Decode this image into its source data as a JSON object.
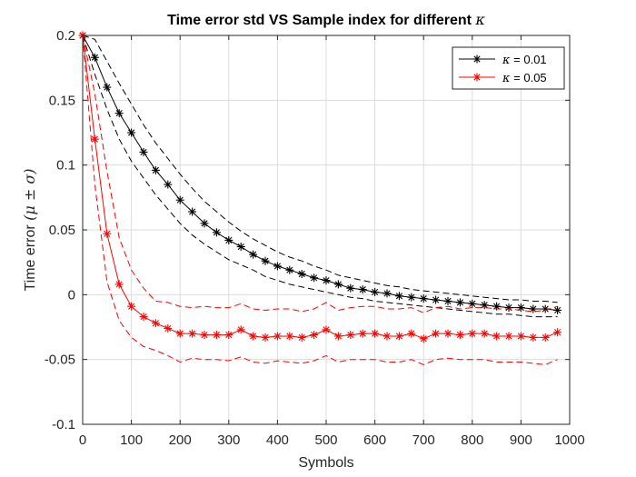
{
  "chart_data": {
    "type": "line",
    "title": "Time error std VS Sample index for different κ",
    "xlabel": "Symbols",
    "ylabel": "Time error (μ ± σ)",
    "xlim": [
      0,
      1000
    ],
    "ylim": [
      -0.1,
      0.2
    ],
    "x_ticks": [
      0,
      100,
      200,
      300,
      400,
      500,
      600,
      700,
      800,
      900,
      1000
    ],
    "y_ticks": [
      -0.1,
      -0.05,
      0,
      0.05,
      0.1,
      0.15,
      0.2
    ],
    "x_tick_labels": [
      "0",
      "100",
      "200",
      "300",
      "400",
      "500",
      "600",
      "700",
      "800",
      "900",
      "1000"
    ],
    "y_tick_labels": [
      "-0.1",
      "-0.05",
      "0",
      "0.05",
      "0.1",
      "0.15",
      "0.2"
    ],
    "grid": true,
    "legend_position": "top-right",
    "x": [
      0,
      25,
      50,
      75,
      100,
      125,
      150,
      175,
      200,
      225,
      250,
      275,
      300,
      325,
      350,
      375,
      400,
      425,
      450,
      475,
      500,
      525,
      550,
      575,
      600,
      625,
      650,
      675,
      700,
      725,
      750,
      775,
      800,
      825,
      850,
      875,
      900,
      925,
      950,
      975
    ],
    "series": [
      {
        "name": "κ = 0.01",
        "color": "#000000",
        "mean": [
          0.2,
          0.183,
          0.16,
          0.14,
          0.125,
          0.11,
          0.096,
          0.085,
          0.073,
          0.064,
          0.055,
          0.048,
          0.042,
          0.037,
          0.031,
          0.026,
          0.022,
          0.019,
          0.016,
          0.013,
          0.011,
          0.008,
          0.005,
          0.004,
          0.002,
          0.001,
          -0.001,
          -0.002,
          -0.003,
          -0.004,
          -0.005,
          -0.006,
          -0.007,
          -0.008,
          -0.009,
          -0.01,
          -0.01,
          -0.011,
          -0.011,
          -0.012
        ],
        "upper": [
          0.2,
          0.197,
          0.18,
          0.163,
          0.147,
          0.131,
          0.117,
          0.105,
          0.093,
          0.082,
          0.072,
          0.064,
          0.056,
          0.049,
          0.043,
          0.038,
          0.033,
          0.029,
          0.026,
          0.022,
          0.019,
          0.015,
          0.013,
          0.011,
          0.009,
          0.007,
          0.006,
          0.004,
          0.003,
          0.002,
          0.001,
          0.0,
          -0.001,
          -0.002,
          -0.003,
          -0.004,
          -0.004,
          -0.005,
          -0.005,
          -0.006
        ],
        "lower": [
          0.2,
          0.17,
          0.143,
          0.12,
          0.103,
          0.09,
          0.077,
          0.066,
          0.055,
          0.046,
          0.039,
          0.033,
          0.027,
          0.023,
          0.019,
          0.014,
          0.011,
          0.008,
          0.006,
          0.004,
          0.002,
          0.0,
          -0.002,
          -0.003,
          -0.005,
          -0.006,
          -0.007,
          -0.008,
          -0.009,
          -0.01,
          -0.011,
          -0.012,
          -0.013,
          -0.014,
          -0.015,
          -0.015,
          -0.016,
          -0.017,
          -0.017,
          -0.017
        ]
      },
      {
        "name": "κ = 0.05",
        "color": "#ff0000",
        "mean": [
          0.2,
          0.12,
          0.047,
          0.008,
          -0.009,
          -0.017,
          -0.022,
          -0.026,
          -0.03,
          -0.03,
          -0.031,
          -0.031,
          -0.031,
          -0.027,
          -0.032,
          -0.033,
          -0.032,
          -0.032,
          -0.033,
          -0.031,
          -0.027,
          -0.032,
          -0.031,
          -0.03,
          -0.03,
          -0.032,
          -0.032,
          -0.03,
          -0.034,
          -0.03,
          -0.03,
          -0.031,
          -0.03,
          -0.03,
          -0.032,
          -0.032,
          -0.032,
          -0.033,
          -0.033,
          -0.029
        ],
        "upper": [
          0.2,
          0.155,
          0.095,
          0.044,
          0.019,
          0.005,
          -0.005,
          -0.006,
          -0.009,
          -0.01,
          -0.009,
          -0.01,
          -0.01,
          -0.007,
          -0.011,
          -0.012,
          -0.011,
          -0.011,
          -0.013,
          -0.011,
          -0.006,
          -0.012,
          -0.01,
          -0.009,
          -0.009,
          -0.011,
          -0.011,
          -0.01,
          -0.014,
          -0.01,
          -0.009,
          -0.011,
          -0.01,
          -0.01,
          -0.011,
          -0.011,
          -0.012,
          -0.013,
          -0.012,
          -0.009
        ],
        "lower": [
          0.2,
          0.085,
          0.01,
          -0.02,
          -0.033,
          -0.04,
          -0.043,
          -0.047,
          -0.052,
          -0.049,
          -0.05,
          -0.05,
          -0.051,
          -0.048,
          -0.052,
          -0.053,
          -0.051,
          -0.052,
          -0.053,
          -0.051,
          -0.047,
          -0.052,
          -0.05,
          -0.05,
          -0.05,
          -0.052,
          -0.052,
          -0.05,
          -0.054,
          -0.05,
          -0.049,
          -0.05,
          -0.05,
          -0.05,
          -0.052,
          -0.052,
          -0.052,
          -0.053,
          -0.054,
          -0.05
        ]
      }
    ]
  }
}
